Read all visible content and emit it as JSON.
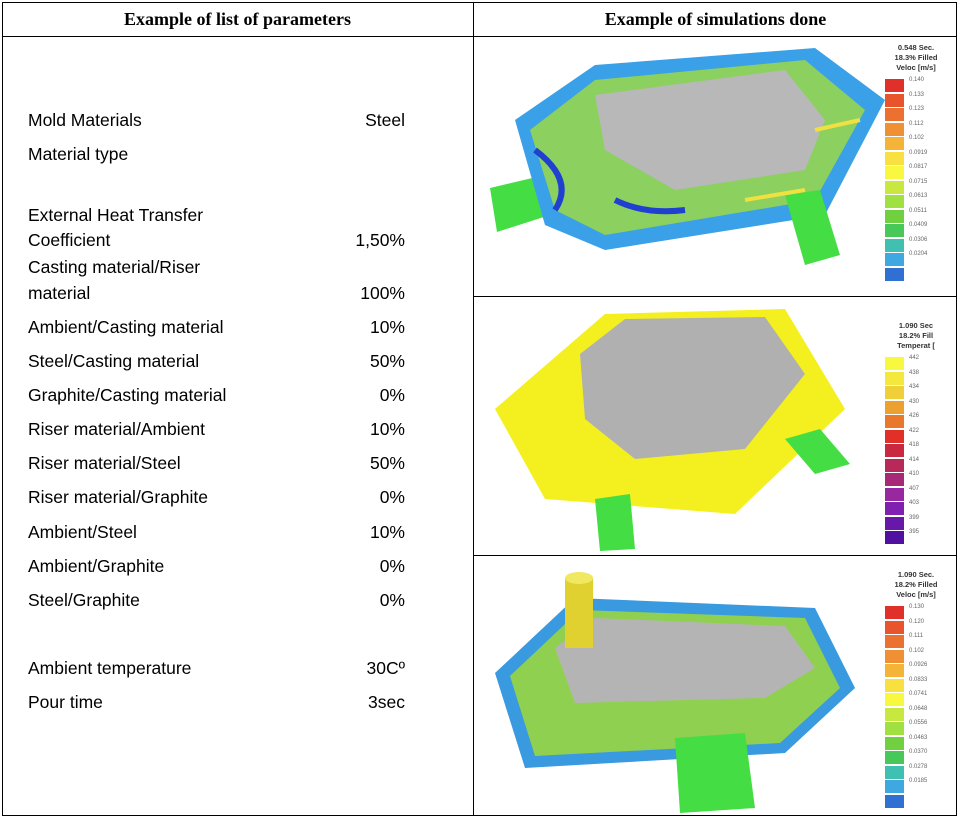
{
  "headers": {
    "left": "Example of list of parameters",
    "right": "Example of simulations done"
  },
  "parameters": [
    {
      "label": "Mold Materials",
      "value": "Steel"
    },
    {
      "label": "Material type",
      "value": ""
    },
    {
      "label": "External Heat Transfer",
      "value": ""
    },
    {
      "label": "Coefficient",
      "value": "1,50%"
    },
    {
      "label": "Casting material/Riser",
      "value": ""
    },
    {
      "label": "material",
      "value": "100%"
    },
    {
      "label": "Ambient/Casting material",
      "value": "10%"
    },
    {
      "label": "Steel/Casting material",
      "value": "50%"
    },
    {
      "label": "Graphite/Casting material",
      "value": "0%"
    },
    {
      "label": "Riser material/Ambient",
      "value": "10%"
    },
    {
      "label": "Riser material/Steel",
      "value": "50%"
    },
    {
      "label": "Riser material/Graphite",
      "value": "0%"
    },
    {
      "label": "Ambient/Steel",
      "value": "10%"
    },
    {
      "label": "Ambient/Graphite",
      "value": "0%"
    },
    {
      "label": "Steel/Graphite",
      "value": "0%"
    },
    {
      "label": "Ambient temperature",
      "value": "30Cº"
    },
    {
      "label": "Pour time",
      "value": "3sec"
    }
  ],
  "simulations": [
    {
      "time": "0.548 Sec.",
      "filled": "18.3% Filled",
      "quantity": "Veloc [m/s]",
      "ticks": [
        "0.140",
        "0.133",
        "0.123",
        "0.112",
        "0.102",
        "0.0919",
        "0.0817",
        "0.0715",
        "0.0613",
        "0.0511",
        "0.0409",
        "0.0306",
        "0.0204"
      ],
      "colors": [
        "#e0302a",
        "#e8552c",
        "#ec7030",
        "#f09035",
        "#f4b438",
        "#f8e040",
        "#f8f840",
        "#c8e840",
        "#a0e040",
        "#70d040",
        "#48c858",
        "#40c0b0",
        "#40a8e0",
        "#3070d0"
      ]
    },
    {
      "time": "1.090 Sec",
      "filled": "18.2% Fill",
      "quantity": "Temperat [",
      "ticks": [
        "442",
        "438",
        "434",
        "430",
        "426",
        "422",
        "418",
        "414",
        "410",
        "407",
        "403",
        "399",
        "395"
      ],
      "colors": [
        "#f8f840",
        "#f4e83c",
        "#f0d038",
        "#eca030",
        "#e8782c",
        "#e03028",
        "#c82840",
        "#b82858",
        "#a82878",
        "#9828a0",
        "#8020b0",
        "#6818a8",
        "#5010a0"
      ]
    },
    {
      "time": "1.090 Sec.",
      "filled": "18.2% Filled",
      "quantity": "Veloc [m/s]",
      "ticks": [
        "0.130",
        "0.120",
        "0.111",
        "0.102",
        "0.0926",
        "0.0833",
        "0.0741",
        "0.0648",
        "0.0556",
        "0.0463",
        "0.0370",
        "0.0278",
        "0.0185"
      ],
      "colors": [
        "#e0302a",
        "#e8552c",
        "#ec7030",
        "#f09035",
        "#f4b438",
        "#f8e040",
        "#f8f840",
        "#c8e840",
        "#a0e040",
        "#70d040",
        "#48c858",
        "#40c0b0",
        "#40a8e0",
        "#3070d0"
      ]
    }
  ]
}
